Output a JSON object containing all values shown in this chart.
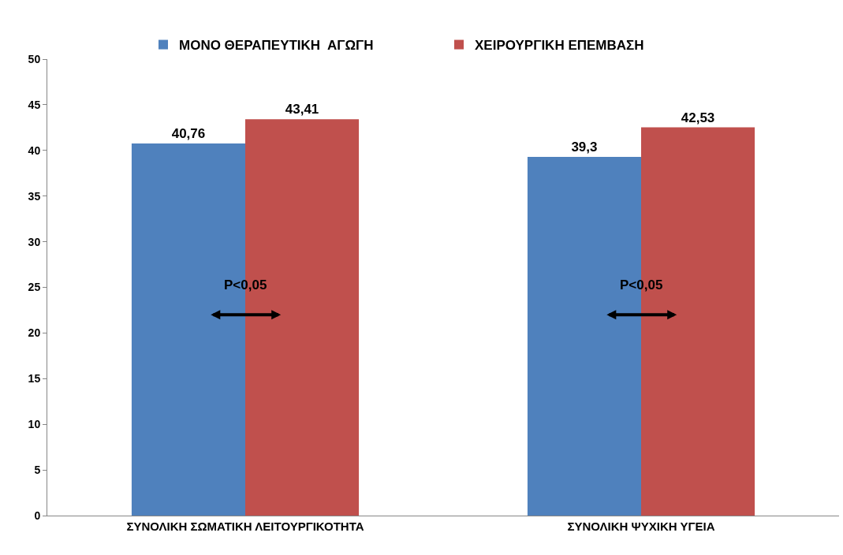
{
  "chart_data": {
    "type": "bar",
    "categories": [
      "ΣΥΝΟΛΙΚΗ ΣΩΜΑΤΙΚΗ ΛΕΙΤΟΥΡΓΙΚΟΤΗΤΑ",
      "ΣΥΝΟΛΙΚΗ ΨΥΧΙΚΗ ΥΓΕΙΑ"
    ],
    "series": [
      {
        "name": "ΜΟΝΟ ΘΕΡΑΠΕΥΤΙΚΗ  ΑΓΩΓΗ",
        "color": "#4f81bd",
        "values": [
          40.76,
          39.3
        ],
        "value_labels": [
          "40,76",
          "39,3"
        ]
      },
      {
        "name": "ΧΕΙΡΟΥΡΓΙΚΗ ΕΠΕΜΒΑΣΗ",
        "color": "#c0504d",
        "values": [
          43.41,
          42.53
        ],
        "value_labels": [
          "43,41",
          "42,53"
        ]
      }
    ],
    "ylim": [
      0,
      50
    ],
    "yticks": [
      0,
      5,
      10,
      15,
      20,
      25,
      30,
      35,
      40,
      45,
      50
    ],
    "legend": "top",
    "annotations": [
      {
        "text": "P<0,05",
        "x": "ΣΥΝΟΛΙΚΗ ΣΩΜΑΤΙΚΗ ΛΕΙΤΟΥΡΓΙΚΟΤΗΤΑ",
        "y": 22
      },
      {
        "text": "P<0,05",
        "x": "ΣΥΝΟΛΙΚΗ ΨΥΧΙΚΗ ΥΓΕΙΑ",
        "y": 22
      }
    ]
  }
}
